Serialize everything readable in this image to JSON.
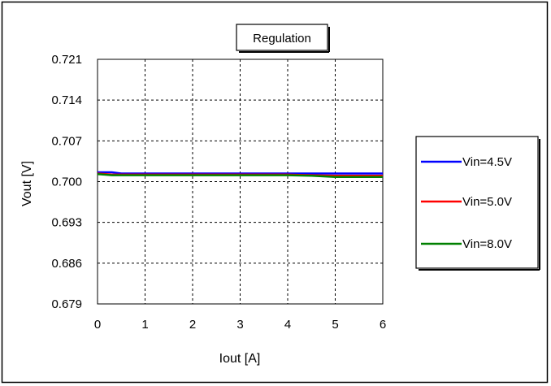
{
  "chart_data": {
    "type": "line",
    "title": "Regulation",
    "xlabel": "Iout [A]",
    "ylabel": "Vout [V]",
    "xlim": [
      0,
      6
    ],
    "ylim": [
      0.679,
      0.721
    ],
    "x_ticks": [
      "0",
      "1",
      "2",
      "3",
      "4",
      "5",
      "6"
    ],
    "y_ticks": [
      "0.721",
      "0.714",
      "0.707",
      "0.700",
      "0.693",
      "0.686",
      "0.679"
    ],
    "grid": true,
    "legend_position": "right",
    "series": [
      {
        "name": "Vin=4.5V",
        "color": "#0000ff",
        "x": [
          0,
          0.3,
          0.5,
          1,
          2,
          3,
          4,
          5,
          6
        ],
        "y": [
          0.7016,
          0.7016,
          0.7014,
          0.7014,
          0.7014,
          0.7014,
          0.7014,
          0.7014,
          0.7014
        ]
      },
      {
        "name": "Vin=5.0V",
        "color": "#ff0000",
        "x": [
          0,
          0.3,
          0.5,
          1,
          2,
          3,
          4,
          4.5,
          5,
          6
        ],
        "y": [
          0.7014,
          0.7012,
          0.7012,
          0.7012,
          0.7012,
          0.7012,
          0.7012,
          0.7011,
          0.701,
          0.701
        ]
      },
      {
        "name": "Vin=8.0V",
        "color": "#008000",
        "x": [
          0,
          0.3,
          0.5,
          1,
          2,
          3,
          4,
          4.5,
          5,
          6
        ],
        "y": [
          0.7013,
          0.7011,
          0.7011,
          0.7011,
          0.7011,
          0.7011,
          0.7011,
          0.701,
          0.7008,
          0.7008
        ]
      }
    ]
  }
}
